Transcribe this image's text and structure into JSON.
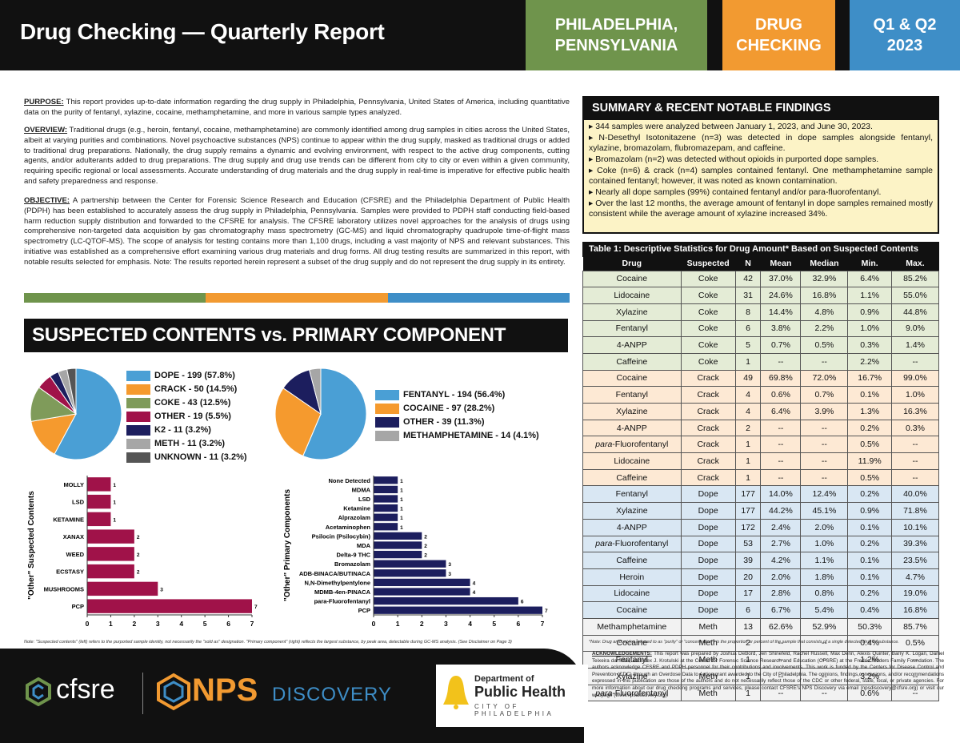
{
  "header": {
    "title": "Drug Checking — Quarterly Report",
    "city_line1": "PHILADELPHIA,",
    "city_line2": "PENNSYLVANIA",
    "drug_line1": "DRUG",
    "drug_line2": "CHECKING",
    "quarter_line1": "Q1 & Q2",
    "quarter_line2": "2023",
    "colors": {
      "city": "#6f944c",
      "drug": "#f29a31",
      "quarter": "#3e8ec7"
    }
  },
  "intro": {
    "purpose_label": "PURPOSE:",
    "purpose_text": " This report provides up-to-date information regarding the drug supply in Philadelphia, Pennsylvania, United States of America, including quantitative data on the purity of fentanyl, xylazine, cocaine, methamphetamine, and more in various sample types analyzed.",
    "overview_label": "OVERVIEW:",
    "overview_text": " Traditional drugs (e.g., heroin, fentanyl, cocaine, methamphetamine) are commonly identified among drug samples in cities across the United States, albeit at varying purities and combinations. Novel psychoactive substances (NPS) continue to appear within the drug supply, masked as traditional drugs or added to traditional drug preparations. Nationally, the drug supply remains a dynamic and evolving environment, with respect to the active drug components, cutting agents, and/or adulterants added to drug preparations. The drug supply and drug use trends can be different from city to city or even within a given community, requiring specific regional or local assessments. Accurate understanding of drug materials and the drug supply in real-time is imperative for effective public health and safety preparedness and response.",
    "objective_label": "OBJECTIVE:",
    "objective_text": " A partnership between the Center for Forensic Science Research and Education (CFSRE) and the Philadelphia Department of Public Health (PDPH) has been established to accurately assess the drug supply in Philadelphia, Pennsylvania. Samples were provided to PDPH staff conducting field-based harm reduction supply distribution and forwarded to the CFSRE for analysis. The CFSRE laboratory utilizes novel approaches for the analysis of drugs using comprehensive non-targeted data acquisition by gas chromatography mass spectrometry (GC-MS) and liquid chromatography quadrupole time-of-flight mass spectrometry (LC-QTOF-MS). The scope of analysis for testing contains more than 1,100 drugs, including a vast majority of NPS and relevant substances. This initiative was established as a comprehensive effort examining various drug materials and drug forms. All drug testing results are summarized in this report, with notable results selected for emphasis. Note: The results reported herein represent a subset of the drug supply and do not represent the drug supply in its entirety."
  },
  "section_heading": "SUSPECTED CONTENTS vs. PRIMARY COMPONENT",
  "summary": {
    "heading": "SUMMARY & RECENT NOTABLE FINDINGS",
    "items": [
      "▸ 344 samples were analyzed between January 1, 2023, and June 30, 2023.",
      "▸ N-Desethyl Isotonitazene (n=3) was detected in dope samples alongside fentanyl, xylazine, bromazolam, flubromazepam, and caffeine.",
      "▸ Bromazolam (n=2) was detected without opioids in purported dope samples.",
      "▸ Coke (n=6) & crack (n=4) samples contained fentanyl. One methamphetamine sample contained fentanyl; however, it was noted as known contamination.",
      "▸ Nearly all dope samples (99%) contained fentanyl and/or para-fluorofentanyl.",
      "▸ Over the last 12 months, the average amount of fentanyl in dope samples remained mostly consistent while the average amount of xylazine increased 34%."
    ]
  },
  "table": {
    "title": "Table 1: Descriptive Statistics for Drug Amount* Based on Suspected Contents",
    "columns": [
      "Drug",
      "Suspected",
      "N",
      "Mean",
      "Median",
      "Min.",
      "Max."
    ],
    "rows": [
      [
        "Cocaine",
        "Coke",
        "42",
        "37.0%",
        "32.9%",
        "6.4%",
        "85.2%"
      ],
      [
        "Lidocaine",
        "Coke",
        "31",
        "24.6%",
        "16.8%",
        "1.1%",
        "55.0%"
      ],
      [
        "Xylazine",
        "Coke",
        "8",
        "14.4%",
        "4.8%",
        "0.9%",
        "44.8%"
      ],
      [
        "Fentanyl",
        "Coke",
        "6",
        "3.8%",
        "2.2%",
        "1.0%",
        "9.0%"
      ],
      [
        "4-ANPP",
        "Coke",
        "5",
        "0.7%",
        "0.5%",
        "0.3%",
        "1.4%"
      ],
      [
        "Caffeine",
        "Coke",
        "1",
        "--",
        "--",
        "2.2%",
        "--"
      ],
      [
        "Cocaine",
        "Crack",
        "49",
        "69.8%",
        "72.0%",
        "16.7%",
        "99.0%"
      ],
      [
        "Fentanyl",
        "Crack",
        "4",
        "0.6%",
        "0.7%",
        "0.1%",
        "1.0%"
      ],
      [
        "Xylazine",
        "Crack",
        "4",
        "6.4%",
        "3.9%",
        "1.3%",
        "16.3%"
      ],
      [
        "4-ANPP",
        "Crack",
        "2",
        "--",
        "--",
        "0.2%",
        "0.3%"
      ],
      [
        "para-Fluorofentanyl",
        "Crack",
        "1",
        "--",
        "--",
        "0.5%",
        "--"
      ],
      [
        "Lidocaine",
        "Crack",
        "1",
        "--",
        "--",
        "11.9%",
        "--"
      ],
      [
        "Caffeine",
        "Crack",
        "1",
        "--",
        "--",
        "0.5%",
        "--"
      ],
      [
        "Fentanyl",
        "Dope",
        "177",
        "14.0%",
        "12.4%",
        "0.2%",
        "40.0%"
      ],
      [
        "Xylazine",
        "Dope",
        "177",
        "44.2%",
        "45.1%",
        "0.9%",
        "71.8%"
      ],
      [
        "4-ANPP",
        "Dope",
        "172",
        "2.4%",
        "2.0%",
        "0.1%",
        "10.1%"
      ],
      [
        "para-Fluorofentanyl",
        "Dope",
        "53",
        "2.7%",
        "1.0%",
        "0.2%",
        "39.3%"
      ],
      [
        "Caffeine",
        "Dope",
        "39",
        "4.2%",
        "1.1%",
        "0.1%",
        "23.5%"
      ],
      [
        "Heroin",
        "Dope",
        "20",
        "2.0%",
        "1.8%",
        "0.1%",
        "4.7%"
      ],
      [
        "Lidocaine",
        "Dope",
        "17",
        "2.8%",
        "0.8%",
        "0.2%",
        "19.0%"
      ],
      [
        "Cocaine",
        "Dope",
        "6",
        "6.7%",
        "5.4%",
        "0.4%",
        "16.8%"
      ],
      [
        "Methamphetamine",
        "Meth",
        "13",
        "62.6%",
        "52.9%",
        "50.3%",
        "85.7%"
      ],
      [
        "Cocaine",
        "Meth",
        "2",
        "--",
        "--",
        "0.4%",
        "0.5%"
      ],
      [
        "Fentanyl",
        "Meth",
        "1",
        "--",
        "--",
        "1.2%",
        "--"
      ],
      [
        "Xylazine",
        "Meth",
        "1",
        "--",
        "--",
        "3.2%",
        "--"
      ],
      [
        "para-Fluorofentanyl",
        "Meth",
        "1",
        "--",
        "--",
        "0.6%",
        "--"
      ]
    ],
    "note": "*Note: Drug amount (as referred to as \"purity\" or \"concentration\") is the proportion or percent of the sample that consists of a single detected drug or substance."
  },
  "chart_data": [
    {
      "type": "pie",
      "labels": [
        "DOPE - 199 (57.8%)",
        "CRACK - 50 (14.5%)",
        "COKE - 43 (12.5%)",
        "OTHER - 19 (5.5%)",
        "K2 - 11 (3.2%)",
        "METH - 11 (3.2%)",
        "UNKNOWN - 11 (3.2%)"
      ],
      "values": [
        199,
        50,
        43,
        19,
        11,
        11,
        11
      ],
      "colors": [
        "#4a9fd5",
        "#f59a2e",
        "#7f9b5a",
        "#a01249",
        "#1c1e5e",
        "#a6a6a6",
        "#555555"
      ],
      "legend": "right"
    },
    {
      "type": "pie",
      "labels": [
        "FENTANYL - 194 (56.4%)",
        "COCAINE - 97 (28.2%)",
        "OTHER - 39 (11.3%)",
        "METHAMPHETAMINE - 14 (4.1%)"
      ],
      "values": [
        194,
        97,
        39,
        14
      ],
      "colors": [
        "#4a9fd5",
        "#f59a2e",
        "#1c1e5e",
        "#a6a6a6"
      ],
      "legend": "right"
    },
    {
      "type": "bar",
      "orientation": "horizontal",
      "categories": [
        "MOLLY",
        "LSD",
        "KETAMINE",
        "XANAX",
        "WEED",
        "ECSTASY",
        "MUSHROOMS",
        "PCP"
      ],
      "values": [
        1,
        1,
        1,
        2,
        2,
        2,
        3,
        7
      ],
      "color": "#a01249",
      "ylabel": "\"Other\" Suspected Contents",
      "xlim": [
        0,
        7
      ],
      "xticks": [
        "0",
        "1",
        "2",
        "3",
        "4",
        "5",
        "6",
        "7"
      ]
    },
    {
      "type": "bar",
      "orientation": "horizontal",
      "categories": [
        "None Detected",
        "MDMA",
        "LSD",
        "Ketamine",
        "Alprazolam",
        "Acetaminophen",
        "Psilocin (Psilocybin)",
        "MDA",
        "Delta-9 THC",
        "Bromazolam",
        "ADB-BINACA/BUTINACA",
        "N,N-Dimethylpentylone",
        "MDMB-4en-PINACA",
        "para-Fluorofentanyl",
        "PCP"
      ],
      "values": [
        1,
        1,
        1,
        1,
        1,
        1,
        2,
        2,
        2,
        3,
        3,
        4,
        4,
        6,
        7
      ],
      "color": "#1c1e5e",
      "ylabel": "\"Other\" Primary Components",
      "xlim": [
        0,
        7
      ],
      "xticks": [
        "0",
        "1",
        "2",
        "3",
        "4",
        "5",
        "6",
        "7"
      ]
    }
  ],
  "chart_note": "Note: \"Suspected contents\" (left) refers to the purported sample identity, not necessarily the \"sold as\" designation. \"Primary component\" (right) reflects the largest substance, by peak area, detectable during GC-MS analysis. (See Disclaimer on Page 3)",
  "footer": {
    "logo1": "cfsre",
    "logo2_a": "NPS",
    "logo2_b": "DISCOVERY",
    "logo3_line1": "Department of",
    "logo3_line2": "Public Health",
    "logo3_line3": "CITY OF PHILADELPHIA",
    "ack_label": "ACKNOWLEDGEMENTS:",
    "ack_text": " This report was prepared by Joshua DeBord, Jen Shinefeld, Rachel Russell, Max Denn, Alexis Quinter, Barry K. Logan, Daniel Teixeira da Silva, and Alex J. Krotulski at the Center for Forensic Science Research and Education (CFSRE) at the Fredric Rieders Family Foundation. The authors acknowledge CFSRE and PDPH personnel for their contributions and involvements. This work is funded by the Centers for Disease Control and Prevention (CDC) through an Overdose Data to Action grant awarded to the City of Philadelphia. The opinions, findings,conclusions, and/or recommendations expressed in this publication are those of the authors and do not necessarily reflect those of the CDC or other federal, state, local, or private agencies. For more information about our drug checking programs and services, please contact CFSRE's NPS Discovery via email (npsdiscovery@cfsre.org) or visit our webpage (www.npsdiscovery.org)."
  }
}
